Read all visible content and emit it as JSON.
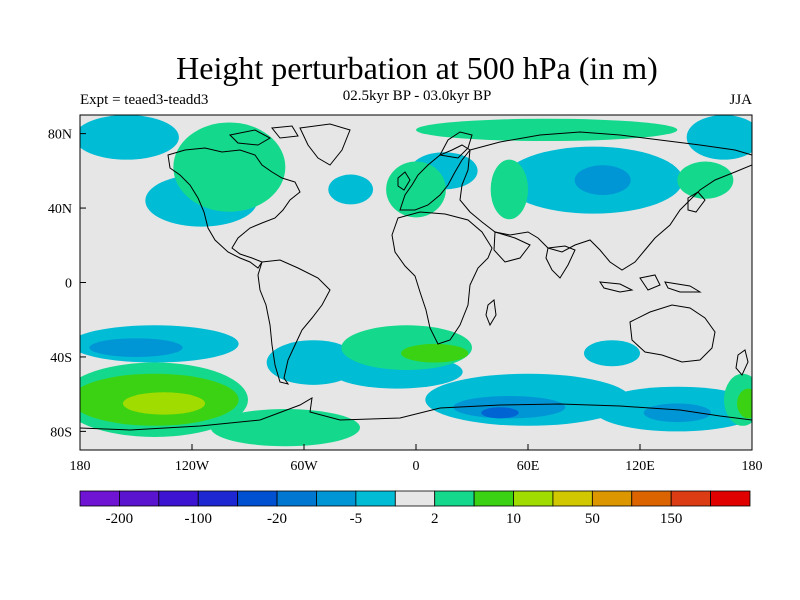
{
  "title": "Height perturbation at 500 hPa (in m)",
  "experiment_label": "Expt = teaed3-teadd3",
  "period_label": "02.5kyr BP - 03.0kyr BP",
  "season_label": "JJA",
  "map": {
    "projection": "cylindrical-equidistant",
    "lon_range": [
      -180,
      180
    ],
    "lat_range": [
      -90,
      90
    ],
    "lon_ticks": [
      {
        "value": -180,
        "label": "180"
      },
      {
        "value": -120,
        "label": "120W"
      },
      {
        "value": -60,
        "label": "60W"
      },
      {
        "value": 0,
        "label": "0"
      },
      {
        "value": 60,
        "label": "60E"
      },
      {
        "value": 120,
        "label": "120E"
      },
      {
        "value": 180,
        "label": "180"
      }
    ],
    "lat_ticks": [
      {
        "value": 80,
        "label": "80N"
      },
      {
        "value": 40,
        "label": "40N"
      },
      {
        "value": 0,
        "label": "0"
      },
      {
        "value": -40,
        "label": "40S"
      },
      {
        "value": -80,
        "label": "80S"
      }
    ],
    "background_color": "#e6e6e6",
    "fields": [
      {
        "level": "neg_small",
        "color": "#00bcd4",
        "shapes": [
          {
            "type": "ellipse",
            "lon": -155,
            "lat": 78,
            "rlon": 28,
            "rlat": 12
          },
          {
            "type": "ellipse",
            "lon": -115,
            "lat": 44,
            "rlon": 30,
            "rlat": 14
          },
          {
            "type": "ellipse",
            "lon": -35,
            "lat": 50,
            "rlon": 12,
            "rlat": 8
          },
          {
            "type": "ellipse",
            "lon": 15,
            "lat": 60,
            "rlon": 18,
            "rlat": 10
          },
          {
            "type": "ellipse",
            "lon": 95,
            "lat": 55,
            "rlon": 48,
            "rlat": 18
          },
          {
            "type": "ellipse",
            "lon": 165,
            "lat": 78,
            "rlon": 20,
            "rlat": 12
          },
          {
            "type": "ellipse",
            "lon": -140,
            "lat": -33,
            "rlon": 45,
            "rlat": 10
          },
          {
            "type": "ellipse",
            "lon": -55,
            "lat": -43,
            "rlon": 25,
            "rlat": 12
          },
          {
            "type": "ellipse",
            "lon": -10,
            "lat": -48,
            "rlon": 35,
            "rlat": 9
          },
          {
            "type": "ellipse",
            "lon": 60,
            "lat": -63,
            "rlon": 55,
            "rlat": 14
          },
          {
            "type": "ellipse",
            "lon": 140,
            "lat": -68,
            "rlon": 45,
            "rlat": 12
          },
          {
            "type": "ellipse",
            "lon": 105,
            "lat": -38,
            "rlon": 15,
            "rlat": 7
          }
        ]
      },
      {
        "level": "neg_medium",
        "color": "#0096d6",
        "shapes": [
          {
            "type": "ellipse",
            "lon": 100,
            "lat": 55,
            "rlon": 15,
            "rlat": 8
          },
          {
            "type": "ellipse",
            "lon": -150,
            "lat": -35,
            "rlon": 25,
            "rlat": 5
          },
          {
            "type": "ellipse",
            "lon": 50,
            "lat": -67,
            "rlon": 30,
            "rlat": 6
          },
          {
            "type": "ellipse",
            "lon": 140,
            "lat": -70,
            "rlon": 18,
            "rlat": 5
          }
        ]
      },
      {
        "level": "neg_large",
        "color": "#0064d2",
        "shapes": [
          {
            "type": "ellipse",
            "lon": 45,
            "lat": -70,
            "rlon": 10,
            "rlat": 3
          }
        ]
      },
      {
        "level": "pos_small",
        "color": "#14d98c",
        "shapes": [
          {
            "type": "ellipse",
            "lon": -100,
            "lat": 62,
            "rlon": 30,
            "rlat": 24
          },
          {
            "type": "ellipse",
            "lon": 0,
            "lat": 50,
            "rlon": 16,
            "rlat": 15
          },
          {
            "type": "ellipse",
            "lon": 70,
            "lat": 82,
            "rlon": 70,
            "rlat": 6
          },
          {
            "type": "ellipse",
            "lon": 50,
            "lat": 50,
            "rlon": 10,
            "rlat": 16
          },
          {
            "type": "ellipse",
            "lon": 155,
            "lat": 55,
            "rlon": 15,
            "rlat": 10
          },
          {
            "type": "ellipse",
            "lon": -5,
            "lat": -35,
            "rlon": 35,
            "rlat": 12
          },
          {
            "type": "ellipse",
            "lon": -140,
            "lat": -63,
            "rlon": 50,
            "rlat": 20
          },
          {
            "type": "ellipse",
            "lon": -70,
            "lat": -78,
            "rlon": 40,
            "rlat": 10
          },
          {
            "type": "ellipse",
            "lon": 175,
            "lat": -63,
            "rlon": 10,
            "rlat": 14
          }
        ]
      },
      {
        "level": "pos_medium",
        "color": "#3cd214",
        "shapes": [
          {
            "type": "ellipse",
            "lon": -140,
            "lat": -63,
            "rlon": 45,
            "rlat": 14
          },
          {
            "type": "ellipse",
            "lon": 10,
            "lat": -38,
            "rlon": 18,
            "rlat": 5
          },
          {
            "type": "ellipse",
            "lon": 178,
            "lat": -65,
            "rlon": 6,
            "rlat": 8
          }
        ]
      },
      {
        "level": "pos_large",
        "color": "#a0dc00",
        "shapes": [
          {
            "type": "ellipse",
            "lon": -135,
            "lat": -65,
            "rlon": 22,
            "rlat": 6
          }
        ]
      }
    ],
    "coastline_color": "#000000"
  },
  "colorbar": {
    "colors": [
      "#6e14d2",
      "#5a14cf",
      "#3c14d2",
      "#1e28d2",
      "#0050d2",
      "#0078d2",
      "#0096d6",
      "#00bcd4",
      "#e6e6e6",
      "#14d98c",
      "#3cd214",
      "#a0dc00",
      "#d2c800",
      "#dc9600",
      "#dc6400",
      "#dc3c14",
      "#e10000"
    ],
    "labels": [
      {
        "text": "-200",
        "boundary": 1
      },
      {
        "text": "-100",
        "boundary": 3
      },
      {
        "text": "-20",
        "boundary": 5
      },
      {
        "text": "-5",
        "boundary": 7
      },
      {
        "text": "2",
        "boundary": 9
      },
      {
        "text": "10",
        "boundary": 11
      },
      {
        "text": "50",
        "boundary": 13
      },
      {
        "text": "150",
        "boundary": 15
      }
    ]
  }
}
